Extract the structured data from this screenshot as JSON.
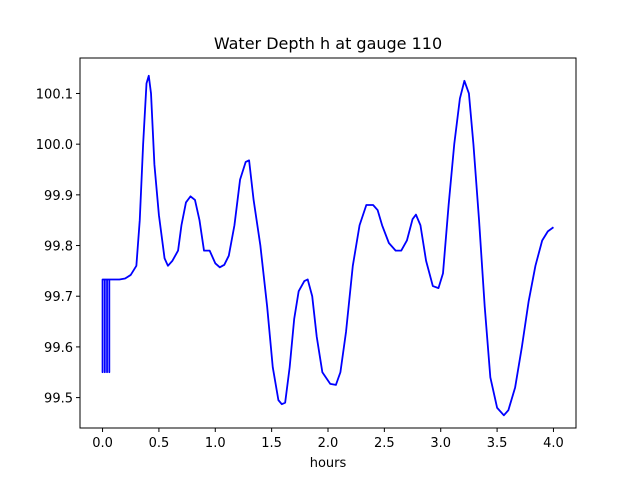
{
  "chart_data": {
    "type": "line",
    "title": "Water Depth h at gauge 110",
    "xlabel": "hours",
    "ylabel": "",
    "xlim": [
      -0.2,
      4.2
    ],
    "ylim": [
      99.44,
      100.17
    ],
    "xticks": [
      0.0,
      0.5,
      1.0,
      1.5,
      2.0,
      2.5,
      3.0,
      3.5,
      4.0
    ],
    "xtick_labels": [
      "0.0",
      "0.5",
      "1.0",
      "1.5",
      "2.0",
      "2.5",
      "3.0",
      "3.5",
      "4.0"
    ],
    "yticks": [
      99.5,
      99.6,
      99.7,
      99.8,
      99.9,
      100.0,
      100.1
    ],
    "ytick_labels": [
      "99.5",
      "99.6",
      "99.7",
      "99.8",
      "99.9",
      "100.0",
      "100.1"
    ],
    "grid": false,
    "legend": "none",
    "series": [
      {
        "color": "#0000ff",
        "points": [
          [
            0.0,
            99.733
          ],
          [
            0.0,
            99.55
          ],
          [
            0.0,
            99.733
          ],
          [
            0.02,
            99.733
          ],
          [
            0.02,
            99.55
          ],
          [
            0.02,
            99.733
          ],
          [
            0.04,
            99.733
          ],
          [
            0.04,
            99.55
          ],
          [
            0.04,
            99.733
          ],
          [
            0.06,
            99.733
          ],
          [
            0.06,
            99.55
          ],
          [
            0.06,
            99.733
          ],
          [
            0.15,
            99.733
          ],
          [
            0.2,
            99.735
          ],
          [
            0.25,
            99.742
          ],
          [
            0.3,
            99.76
          ],
          [
            0.33,
            99.85
          ],
          [
            0.36,
            100.0
          ],
          [
            0.39,
            100.12
          ],
          [
            0.41,
            100.135
          ],
          [
            0.43,
            100.1
          ],
          [
            0.46,
            99.96
          ],
          [
            0.5,
            99.86
          ],
          [
            0.55,
            99.775
          ],
          [
            0.58,
            99.76
          ],
          [
            0.62,
            99.77
          ],
          [
            0.67,
            99.79
          ],
          [
            0.7,
            99.84
          ],
          [
            0.74,
            99.885
          ],
          [
            0.78,
            99.897
          ],
          [
            0.82,
            99.89
          ],
          [
            0.86,
            99.85
          ],
          [
            0.9,
            99.79
          ],
          [
            0.95,
            99.79
          ],
          [
            1.0,
            99.765
          ],
          [
            1.04,
            99.757
          ],
          [
            1.08,
            99.762
          ],
          [
            1.12,
            99.78
          ],
          [
            1.17,
            99.84
          ],
          [
            1.22,
            99.93
          ],
          [
            1.27,
            99.965
          ],
          [
            1.3,
            99.968
          ],
          [
            1.34,
            99.89
          ],
          [
            1.4,
            99.8
          ],
          [
            1.46,
            99.68
          ],
          [
            1.51,
            99.56
          ],
          [
            1.56,
            99.495
          ],
          [
            1.59,
            99.487
          ],
          [
            1.62,
            99.49
          ],
          [
            1.66,
            99.56
          ],
          [
            1.7,
            99.655
          ],
          [
            1.74,
            99.71
          ],
          [
            1.79,
            99.73
          ],
          [
            1.82,
            99.733
          ],
          [
            1.86,
            99.7
          ],
          [
            1.9,
            99.62
          ],
          [
            1.95,
            99.55
          ],
          [
            2.02,
            99.527
          ],
          [
            2.07,
            99.525
          ],
          [
            2.11,
            99.55
          ],
          [
            2.16,
            99.63
          ],
          [
            2.22,
            99.76
          ],
          [
            2.28,
            99.84
          ],
          [
            2.34,
            99.88
          ],
          [
            2.4,
            99.88
          ],
          [
            2.44,
            99.87
          ],
          [
            2.48,
            99.84
          ],
          [
            2.54,
            99.805
          ],
          [
            2.6,
            99.79
          ],
          [
            2.65,
            99.79
          ],
          [
            2.7,
            99.81
          ],
          [
            2.75,
            99.852
          ],
          [
            2.78,
            99.861
          ],
          [
            2.82,
            99.84
          ],
          [
            2.87,
            99.77
          ],
          [
            2.93,
            99.72
          ],
          [
            2.98,
            99.716
          ],
          [
            3.02,
            99.745
          ],
          [
            3.07,
            99.88
          ],
          [
            3.12,
            100.0
          ],
          [
            3.17,
            100.09
          ],
          [
            3.21,
            100.125
          ],
          [
            3.25,
            100.1
          ],
          [
            3.29,
            100.0
          ],
          [
            3.34,
            99.85
          ],
          [
            3.39,
            99.68
          ],
          [
            3.44,
            99.54
          ],
          [
            3.5,
            99.48
          ],
          [
            3.56,
            99.465
          ],
          [
            3.6,
            99.475
          ],
          [
            3.66,
            99.52
          ],
          [
            3.72,
            99.6
          ],
          [
            3.78,
            99.69
          ],
          [
            3.84,
            99.76
          ],
          [
            3.9,
            99.81
          ],
          [
            3.95,
            99.828
          ],
          [
            4.0,
            99.836
          ]
        ]
      }
    ]
  }
}
